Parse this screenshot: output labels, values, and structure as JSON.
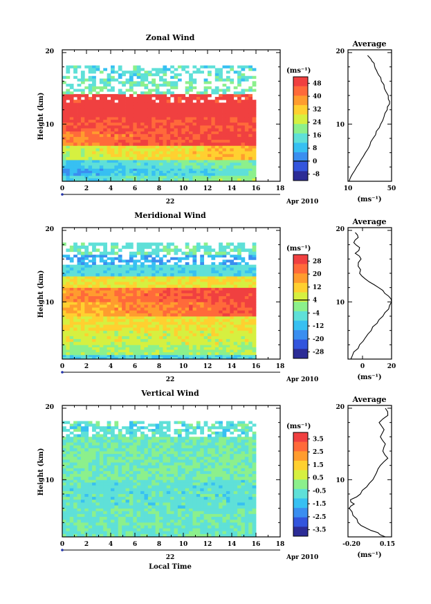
{
  "chart_data": [
    {
      "type": "heatmap",
      "title": "Zonal Wind",
      "ylabel": "Height (km)",
      "ylim": [
        2,
        20
      ],
      "y_ticks": [
        "20",
        "10"
      ],
      "xlim": [
        0,
        18
      ],
      "x_ticks": [
        "0",
        "2",
        "4",
        "6",
        "8",
        "10",
        "12",
        "14",
        "16",
        "18"
      ],
      "date_label": "22",
      "date_suffix": "Apr 2010",
      "data_end_hour": 16,
      "unit": "(ms⁻¹)",
      "colorbar_ticks": [
        "48",
        "40",
        "32",
        "24",
        "16",
        "8",
        "0",
        "-8"
      ],
      "colorbar_range": [
        -12,
        52
      ],
      "colorbar_zero_line": 0,
      "colors": [
        "#2c2c96",
        "#3355dd",
        "#3a8ef0",
        "#37c0f2",
        "#5fe0d8",
        "#8cf08c",
        "#d6f040",
        "#ffd030",
        "#ff9c2e",
        "#ff6a3a",
        "#f04040"
      ],
      "layers": [
        {
          "ymin": 2,
          "ymax": 2.8,
          "level": 3.6
        },
        {
          "ymin": 2.8,
          "ymax": 3.8,
          "level": 2.6
        },
        {
          "ymin": 3.8,
          "ymax": 5,
          "level": 3.4
        },
        {
          "ymin": 5,
          "ymax": 7,
          "level": 5.8
        },
        {
          "ymin": 7,
          "ymax": 9,
          "level": 8.6
        },
        {
          "ymin": 9,
          "ymax": 11,
          "level": 9.6
        },
        {
          "ymin": 11,
          "ymax": 13,
          "level": 10.4
        },
        {
          "ymin": 13,
          "ymax": 14.2,
          "level": 10
        },
        {
          "ymin": 14.2,
          "ymax": 16,
          "level": 4.5
        },
        {
          "ymin": 16,
          "ymax": 18.2,
          "level": 4
        }
      ],
      "average": {
        "title": "Average",
        "xlim": [
          10,
          50
        ],
        "x_ticks": [
          "10",
          "50"
        ],
        "xlabel": "(ms⁻¹)",
        "y_ticks": [
          "20",
          "10"
        ],
        "profile": [
          [
            11,
            2
          ],
          [
            14,
            3
          ],
          [
            18,
            4
          ],
          [
            22,
            5
          ],
          [
            26,
            6
          ],
          [
            30,
            7
          ],
          [
            33,
            8
          ],
          [
            36,
            9
          ],
          [
            40,
            10
          ],
          [
            43,
            11
          ],
          [
            46,
            12
          ],
          [
            48,
            12.8
          ],
          [
            47,
            13.5
          ],
          [
            45,
            14.5
          ],
          [
            43,
            15.5
          ],
          [
            40,
            16.5
          ],
          [
            37,
            17.2
          ],
          [
            35,
            17.8
          ],
          [
            34,
            18.5
          ],
          [
            31,
            19.1
          ],
          [
            28,
            19.6
          ]
        ]
      }
    },
    {
      "type": "heatmap",
      "title": "Meridional Wind",
      "ylabel": "Height (km)",
      "ylim": [
        2,
        20
      ],
      "y_ticks": [
        "20",
        "10"
      ],
      "xlim": [
        0,
        18
      ],
      "x_ticks": [
        "0",
        "2",
        "4",
        "6",
        "8",
        "10",
        "12",
        "14",
        "16",
        "18"
      ],
      "date_label": "22",
      "date_suffix": "Apr 2010",
      "data_end_hour": 16,
      "unit": "(ms⁻¹)",
      "colorbar_ticks": [
        "28",
        "20",
        "12",
        "4",
        "-4",
        "-12",
        "-20",
        "-28"
      ],
      "colorbar_range": [
        -32,
        32
      ],
      "colorbar_zero_line": 4,
      "colors": [
        "#2c2c96",
        "#3355dd",
        "#3a8ef0",
        "#37c0f2",
        "#5fe0d8",
        "#8cf08c",
        "#d6f040",
        "#ffd030",
        "#ff9c2e",
        "#ff6a3a",
        "#f04040"
      ],
      "layers": [
        {
          "ymin": 2,
          "ymax": 2.6,
          "level": 3.6
        },
        {
          "ymin": 2.6,
          "ymax": 4,
          "level": 5.2
        },
        {
          "ymin": 4,
          "ymax": 6,
          "level": 6
        },
        {
          "ymin": 6,
          "ymax": 8,
          "level": 6.6
        },
        {
          "ymin": 8,
          "ymax": 10,
          "level": 7.4
        },
        {
          "ymin": 10,
          "ymax": 12,
          "level": 8
        },
        {
          "ymin": 12,
          "ymax": 13.6,
          "level": 6.5
        },
        {
          "ymin": 13.6,
          "ymax": 15.2,
          "level": 3.8
        },
        {
          "ymin": 15.2,
          "ymax": 16.6,
          "level": 2.6
        },
        {
          "ymin": 16.6,
          "ymax": 18.3,
          "level": 4.2
        }
      ],
      "average": {
        "title": "Average",
        "xlim": [
          -10,
          20
        ],
        "x_ticks": [
          "0",
          "20"
        ],
        "xlabel": "(ms⁻¹)",
        "y_ticks": [
          "20",
          "10"
        ],
        "profile": [
          [
            -8,
            2
          ],
          [
            -6,
            3
          ],
          [
            -2,
            4
          ],
          [
            2,
            5
          ],
          [
            6,
            6
          ],
          [
            10,
            7
          ],
          [
            14,
            8
          ],
          [
            18,
            9
          ],
          [
            20,
            10
          ],
          [
            18,
            10.8
          ],
          [
            14,
            11.6
          ],
          [
            8,
            12.4
          ],
          [
            2,
            13.2
          ],
          [
            -2,
            14
          ],
          [
            -3,
            15
          ],
          [
            -1,
            16
          ],
          [
            -5,
            16.8
          ],
          [
            -2,
            17.6
          ],
          [
            -6,
            18.3
          ],
          [
            -3,
            19
          ],
          [
            -5,
            19.7
          ]
        ]
      }
    },
    {
      "type": "heatmap",
      "title": "Vertical Wind",
      "ylabel": "Height (km)",
      "ylim": [
        2,
        20
      ],
      "y_ticks": [
        "20",
        "10"
      ],
      "xlim": [
        0,
        18
      ],
      "x_ticks": [
        "0",
        "2",
        "4",
        "6",
        "8",
        "10",
        "12",
        "14",
        "16",
        "18"
      ],
      "date_label": "22",
      "date_suffix": "Apr 2010",
      "xlabel": "Local Time",
      "data_end_hour": 16,
      "unit": "(ms⁻¹)",
      "colorbar_ticks": [
        "3.5",
        "2.5",
        "1.5",
        "0.5",
        "-0.5",
        "-1.5",
        "-2.5",
        "-3.5"
      ],
      "colorbar_range": [
        -4,
        4
      ],
      "colorbar_zero_line": null,
      "colors": [
        "#2c2c96",
        "#3355dd",
        "#3a8ef0",
        "#37c0f2",
        "#5fe0d8",
        "#8cf08c",
        "#d6f040",
        "#ffd030",
        "#ff9c2e",
        "#ff6a3a",
        "#f04040"
      ],
      "layers": [
        {
          "ymin": 2,
          "ymax": 6,
          "level": 4.3
        },
        {
          "ymin": 6,
          "ymax": 10,
          "level": 4.1
        },
        {
          "ymin": 10,
          "ymax": 14,
          "level": 4.6
        },
        {
          "ymin": 14,
          "ymax": 16,
          "level": 4.4
        },
        {
          "ymin": 16,
          "ymax": 18.2,
          "level": 4
        }
      ],
      "average": {
        "title": "Average",
        "xlim": [
          -0.2,
          0.15
        ],
        "x_ticks": [
          "-0.20",
          "0.15"
        ],
        "xlabel": "(ms⁻¹)",
        "y_ticks": [
          "20",
          "10"
        ],
        "profile": [
          [
            0.1,
            2
          ],
          [
            0.04,
            2.6
          ],
          [
            -0.05,
            3.2
          ],
          [
            -0.12,
            4
          ],
          [
            -0.16,
            5
          ],
          [
            -0.19,
            6
          ],
          [
            -0.15,
            6.6
          ],
          [
            -0.18,
            7.2
          ],
          [
            -0.1,
            8
          ],
          [
            -0.05,
            9
          ],
          [
            0,
            10
          ],
          [
            0.03,
            11
          ],
          [
            0.06,
            12
          ],
          [
            0.12,
            13
          ],
          [
            0.08,
            14
          ],
          [
            0.1,
            15
          ],
          [
            0.06,
            16
          ],
          [
            0.09,
            17
          ],
          [
            0.05,
            18
          ],
          [
            0.12,
            19
          ],
          [
            0.1,
            20
          ]
        ]
      }
    }
  ]
}
